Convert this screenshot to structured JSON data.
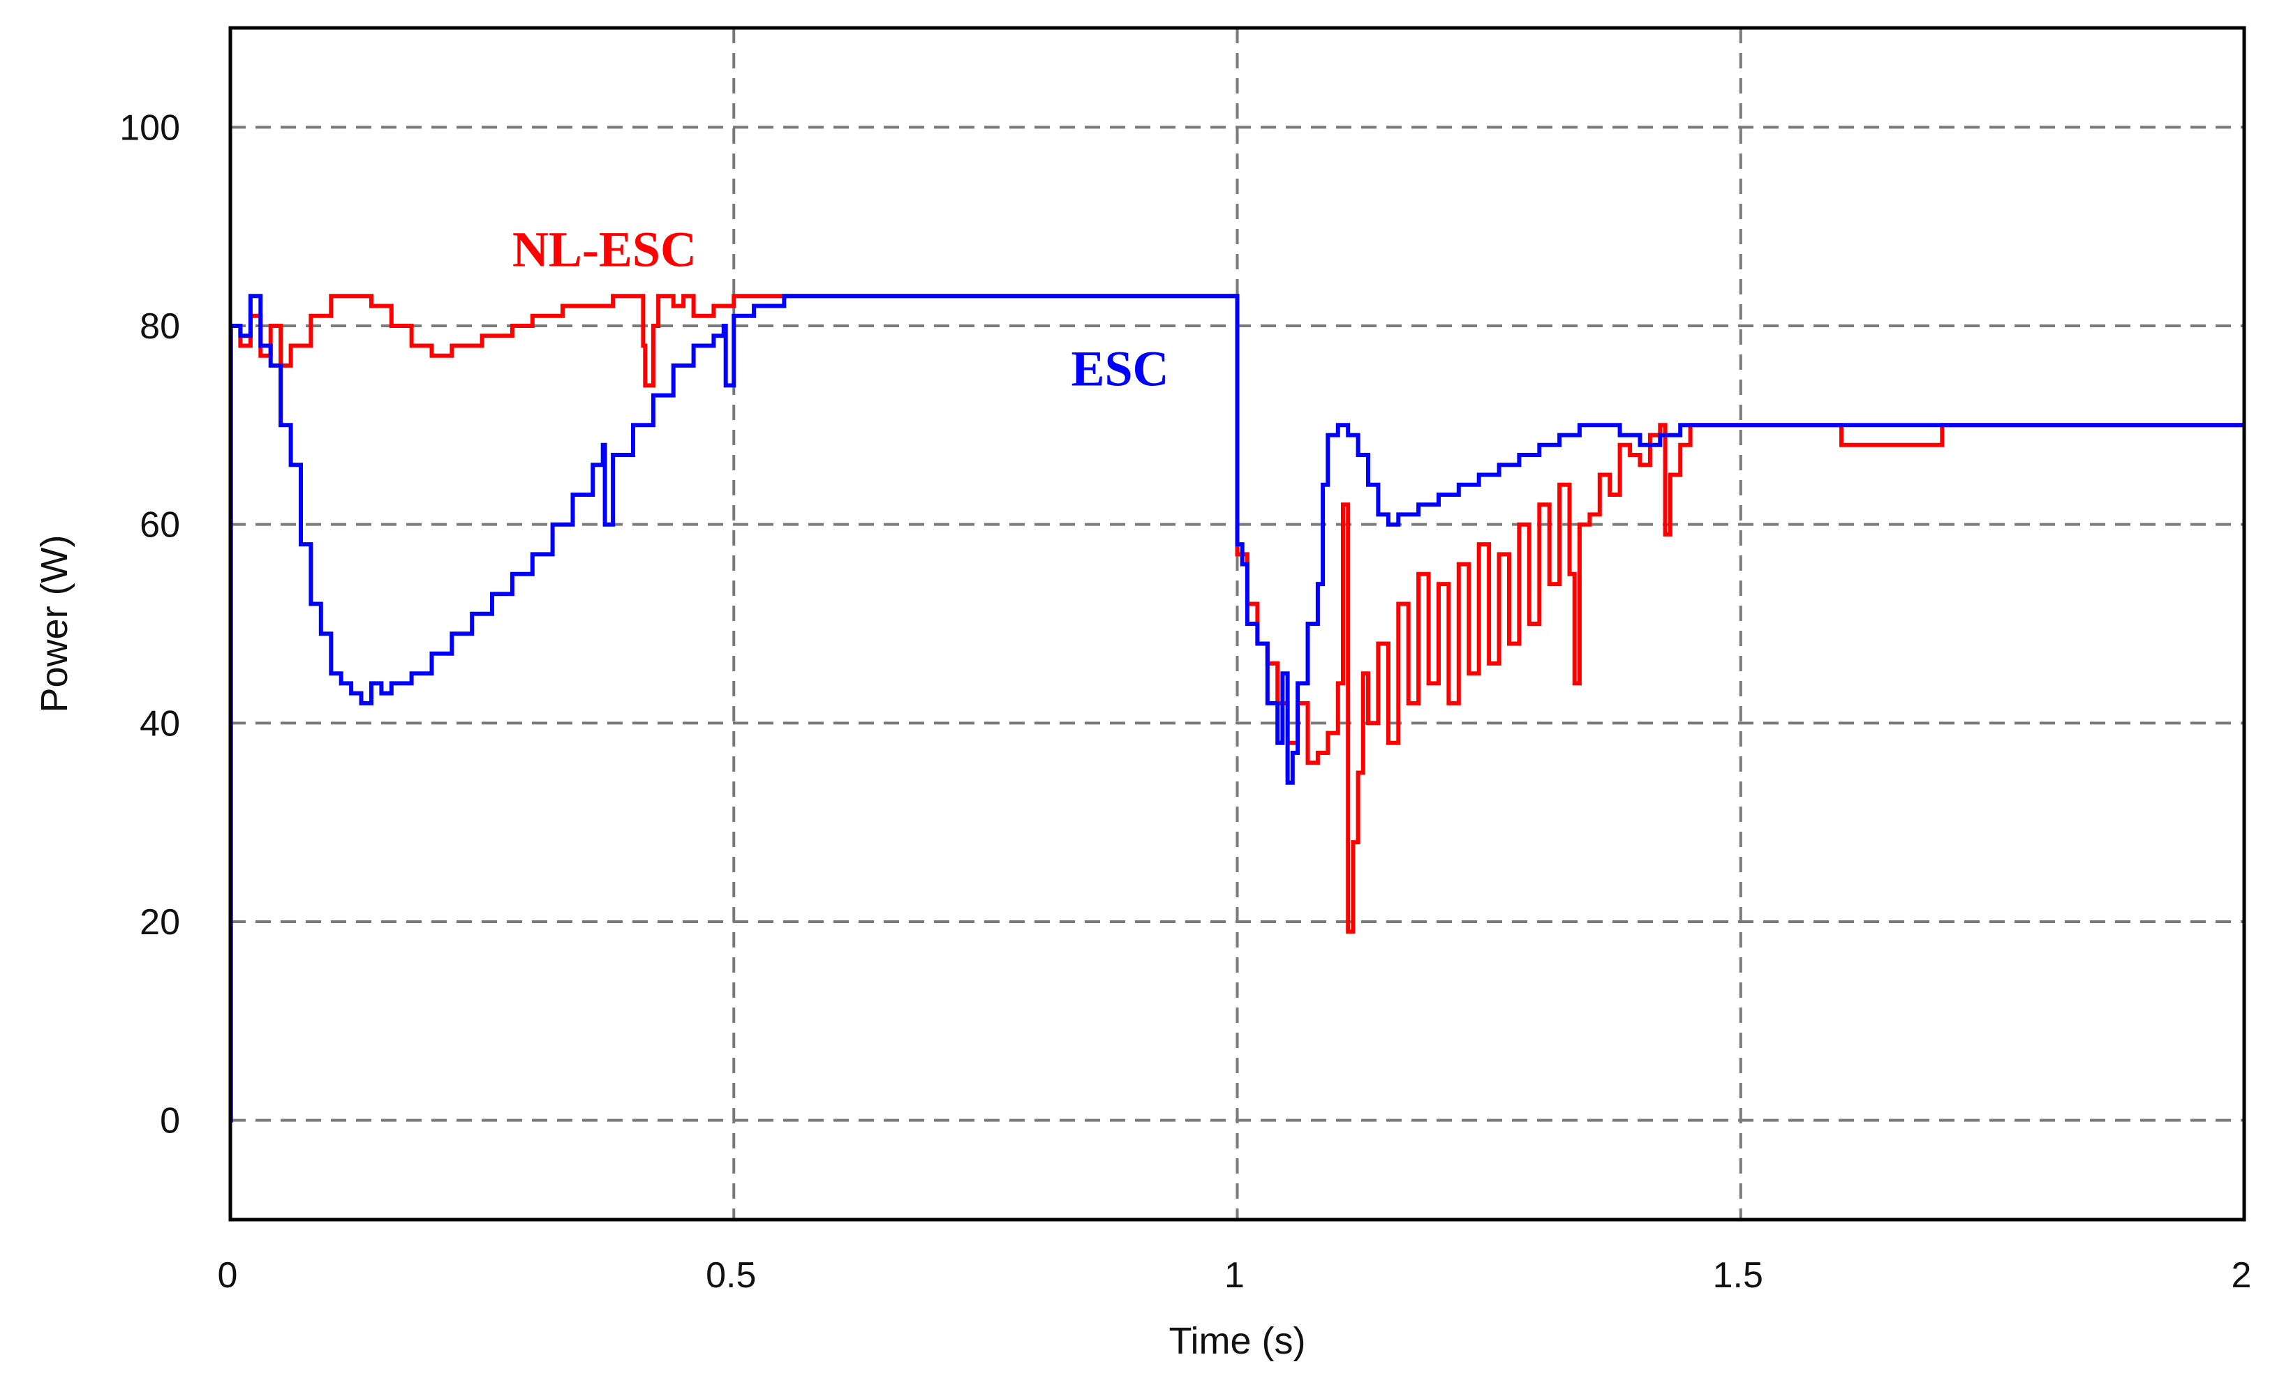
{
  "chart_data": {
    "type": "line",
    "title": "",
    "xlabel": "Time (s)",
    "ylabel": "Power (W)",
    "xlim": [
      0,
      2
    ],
    "ylim": [
      -10,
      110
    ],
    "xticks": [
      0,
      0.5,
      1,
      1.5,
      2
    ],
    "xtick_labels": [
      "0",
      "0.5",
      "1",
      "1.5",
      "2"
    ],
    "yticks": [
      0,
      20,
      40,
      60,
      80,
      100
    ],
    "ytick_labels": [
      "0",
      "20",
      "40",
      "60",
      "80",
      "100"
    ],
    "grid": true,
    "series": [
      {
        "name": "NL-ESC",
        "color": "#ff0000",
        "x": [
          0,
          0.01,
          0.02,
          0.03,
          0.04,
          0.05,
          0.06,
          0.08,
          0.1,
          0.12,
          0.14,
          0.16,
          0.18,
          0.2,
          0.22,
          0.25,
          0.28,
          0.3,
          0.33,
          0.36,
          0.38,
          0.4,
          0.41,
          0.412,
          0.42,
          0.425,
          0.44,
          0.45,
          0.46,
          0.48,
          0.5,
          0.52,
          0.55,
          0.6,
          0.7,
          0.8,
          0.9,
          1.0,
          1.0,
          1.01,
          1.02,
          1.03,
          1.04,
          1.05,
          1.06,
          1.07,
          1.08,
          1.09,
          1.1,
          1.105,
          1.11,
          1.115,
          1.12,
          1.125,
          1.13,
          1.14,
          1.15,
          1.16,
          1.17,
          1.18,
          1.19,
          1.2,
          1.21,
          1.22,
          1.23,
          1.24,
          1.25,
          1.26,
          1.27,
          1.28,
          1.29,
          1.3,
          1.31,
          1.32,
          1.33,
          1.335,
          1.34,
          1.35,
          1.36,
          1.37,
          1.38,
          1.39,
          1.4,
          1.41,
          1.42,
          1.425,
          1.43,
          1.44,
          1.45,
          1.5,
          1.55,
          1.6,
          1.7,
          1.8,
          1.9,
          2.0
        ],
        "y": [
          80,
          78,
          81,
          77,
          80,
          76,
          78,
          81,
          83,
          83,
          82,
          80,
          78,
          77,
          78,
          79,
          80,
          81,
          82,
          82,
          83,
          83,
          78,
          74,
          80,
          83,
          82,
          83,
          81,
          82,
          83,
          83,
          83,
          83,
          83,
          83,
          83,
          83,
          57,
          52,
          48,
          46,
          42,
          38,
          42,
          36,
          37,
          39,
          44,
          62,
          19,
          28,
          35,
          45,
          40,
          48,
          38,
          52,
          42,
          55,
          44,
          54,
          42,
          56,
          45,
          58,
          46,
          57,
          48,
          60,
          50,
          62,
          54,
          64,
          55,
          44,
          60,
          61,
          65,
          63,
          68,
          67,
          66,
          69,
          70,
          59,
          65,
          68,
          70,
          70,
          70,
          68,
          70,
          70,
          70,
          70
        ]
      },
      {
        "name": "ESC",
        "color": "#0000ff",
        "x": [
          0,
          0.0005,
          0.005,
          0.01,
          0.02,
          0.03,
          0.04,
          0.05,
          0.06,
          0.07,
          0.08,
          0.09,
          0.1,
          0.11,
          0.12,
          0.13,
          0.14,
          0.15,
          0.16,
          0.18,
          0.2,
          0.22,
          0.24,
          0.26,
          0.28,
          0.3,
          0.32,
          0.34,
          0.36,
          0.37,
          0.372,
          0.38,
          0.4,
          0.42,
          0.44,
          0.46,
          0.48,
          0.49,
          0.492,
          0.5,
          0.52,
          0.55,
          0.6,
          0.7,
          0.8,
          0.9,
          1.0,
          1.0,
          1.005,
          1.01,
          1.02,
          1.03,
          1.04,
          1.045,
          1.05,
          1.055,
          1.06,
          1.07,
          1.08,
          1.085,
          1.09,
          1.1,
          1.11,
          1.12,
          1.13,
          1.14,
          1.15,
          1.16,
          1.18,
          1.2,
          1.22,
          1.24,
          1.26,
          1.28,
          1.3,
          1.32,
          1.34,
          1.36,
          1.38,
          1.4,
          1.42,
          1.44,
          1.46,
          1.5,
          1.6,
          1.7,
          1.8,
          1.9,
          2.0
        ],
        "y": [
          0,
          80,
          80,
          79,
          83,
          78,
          76,
          70,
          66,
          58,
          52,
          49,
          45,
          44,
          43,
          42,
          44,
          43,
          44,
          45,
          47,
          49,
          51,
          53,
          55,
          57,
          60,
          63,
          66,
          68,
          60,
          67,
          70,
          73,
          76,
          78,
          79,
          80,
          74,
          81,
          82,
          83,
          83,
          83,
          83,
          83,
          83,
          58,
          56,
          50,
          48,
          42,
          38,
          45,
          34,
          37,
          44,
          50,
          54,
          64,
          69,
          70,
          69,
          67,
          64,
          61,
          60,
          61,
          62,
          63,
          64,
          65,
          66,
          67,
          68,
          69,
          70,
          70,
          69,
          68,
          69,
          70,
          70,
          70,
          70,
          70,
          70,
          70,
          70
        ]
      }
    ],
    "annotations": [
      {
        "text": "NL-ESC",
        "color": "#ff0000",
        "x": 0.28,
        "y": 86
      },
      {
        "text": "ESC",
        "color": "#0000ff",
        "x": 0.835,
        "y": 74
      }
    ]
  }
}
